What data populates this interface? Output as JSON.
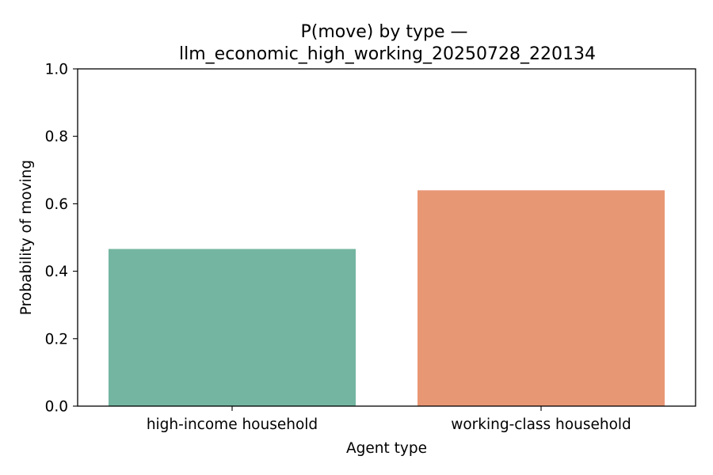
{
  "chart_data": {
    "type": "bar",
    "title_lines": [
      "P(move) by type —",
      "llm_economic_high_working_20250728_220134"
    ],
    "xlabel": "Agent type",
    "ylabel": "Probability of moving",
    "categories": [
      "high-income household",
      "working-class household"
    ],
    "values": [
      0.466,
      0.64
    ],
    "colors": [
      "#74b5a1",
      "#e89775"
    ],
    "ylim": [
      0,
      1.0
    ],
    "yticks": [
      "0.0",
      "0.2",
      "0.4",
      "0.6",
      "0.8",
      "1.0"
    ],
    "grid": false,
    "legend": "none"
  }
}
